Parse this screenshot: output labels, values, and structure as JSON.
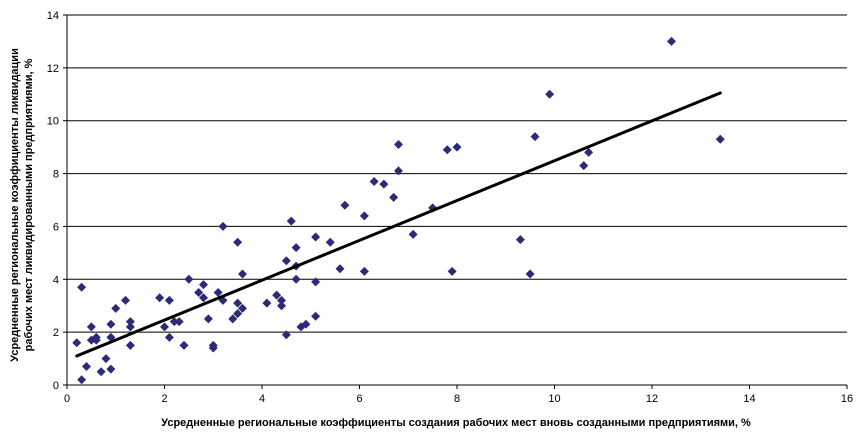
{
  "chart_data": {
    "type": "scatter",
    "title": "",
    "xlabel": "Усредненные региональные коэффициенты создания рабочих мест вновь созданными предприятиями, %",
    "ylabel_line1": "Усредненные региональные коэффициенты ликвидации",
    "ylabel_line2": "рабочих мест ликвидированными предприятиями, %",
    "xlim": [
      0,
      16
    ],
    "ylim": [
      0,
      14
    ],
    "x_ticks": [
      0,
      2,
      4,
      6,
      8,
      10,
      12,
      14,
      16
    ],
    "y_ticks": [
      0,
      2,
      4,
      6,
      8,
      10,
      12,
      14
    ],
    "grid": "horizontal",
    "legend": "none",
    "colors": {
      "points": "#2b2b7a",
      "trendline": "#000000",
      "grid": "#000000"
    },
    "series": [
      {
        "points": [
          [
            0.2,
            1.6
          ],
          [
            0.3,
            0.2
          ],
          [
            0.3,
            3.7
          ],
          [
            0.4,
            0.7
          ],
          [
            0.5,
            2.2
          ],
          [
            0.5,
            1.7
          ],
          [
            0.6,
            1.7
          ],
          [
            0.6,
            1.8
          ],
          [
            0.7,
            0.5
          ],
          [
            0.8,
            1.0
          ],
          [
            0.9,
            0.6
          ],
          [
            0.9,
            2.3
          ],
          [
            0.9,
            1.8
          ],
          [
            1.0,
            2.9
          ],
          [
            1.2,
            3.2
          ],
          [
            1.3,
            2.4
          ],
          [
            1.3,
            2.2
          ],
          [
            1.3,
            1.5
          ],
          [
            1.9,
            3.3
          ],
          [
            2.0,
            2.2
          ],
          [
            2.1,
            3.2
          ],
          [
            2.1,
            1.8
          ],
          [
            2.2,
            2.4
          ],
          [
            2.3,
            2.4
          ],
          [
            2.4,
            1.5
          ],
          [
            2.5,
            4.0
          ],
          [
            2.7,
            3.5
          ],
          [
            2.8,
            3.8
          ],
          [
            2.8,
            3.3
          ],
          [
            2.9,
            2.5
          ],
          [
            3.0,
            1.5
          ],
          [
            3.0,
            1.4
          ],
          [
            3.1,
            3.5
          ],
          [
            3.2,
            3.2
          ],
          [
            3.2,
            6.0
          ],
          [
            3.4,
            2.5
          ],
          [
            3.5,
            5.4
          ],
          [
            3.5,
            3.1
          ],
          [
            3.5,
            2.7
          ],
          [
            3.6,
            2.9
          ],
          [
            3.6,
            4.2
          ],
          [
            4.1,
            3.1
          ],
          [
            4.3,
            3.4
          ],
          [
            4.4,
            3.2
          ],
          [
            4.4,
            3.0
          ],
          [
            4.5,
            4.7
          ],
          [
            4.5,
            1.9
          ],
          [
            4.6,
            6.2
          ],
          [
            4.7,
            5.2
          ],
          [
            4.7,
            4.5
          ],
          [
            4.7,
            4.0
          ],
          [
            4.8,
            2.2
          ],
          [
            4.9,
            2.3
          ],
          [
            5.1,
            5.6
          ],
          [
            5.1,
            3.9
          ],
          [
            5.1,
            2.6
          ],
          [
            5.4,
            5.4
          ],
          [
            5.6,
            4.4
          ],
          [
            5.7,
            6.8
          ],
          [
            6.1,
            6.4
          ],
          [
            6.1,
            4.3
          ],
          [
            6.3,
            7.7
          ],
          [
            6.5,
            7.6
          ],
          [
            6.7,
            7.1
          ],
          [
            6.8,
            9.1
          ],
          [
            6.8,
            8.1
          ],
          [
            7.1,
            5.7
          ],
          [
            7.5,
            6.7
          ],
          [
            7.8,
            8.9
          ],
          [
            7.9,
            4.3
          ],
          [
            8.0,
            9.0
          ],
          [
            9.3,
            5.5
          ],
          [
            9.5,
            4.2
          ],
          [
            9.6,
            9.4
          ],
          [
            9.9,
            11.0
          ],
          [
            10.6,
            8.3
          ],
          [
            10.7,
            8.8
          ],
          [
            12.4,
            13.0
          ],
          [
            13.4,
            9.3
          ]
        ]
      }
    ],
    "trendline": {
      "x": [
        0.2,
        13.4
      ],
      "y": [
        1.1,
        11.05
      ]
    }
  }
}
